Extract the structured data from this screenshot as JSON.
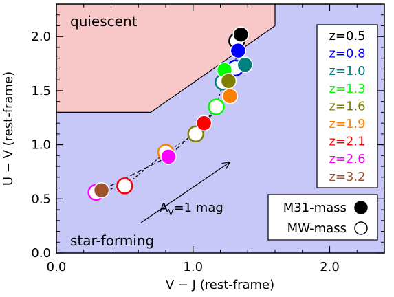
{
  "chart_data": {
    "type": "scatter",
    "xlabel": "V − J (rest-frame)",
    "ylabel": "U − V (rest-frame)",
    "xlim": [
      0.0,
      2.4
    ],
    "ylim": [
      0.0,
      2.3
    ],
    "x_ticks": [
      {
        "value": 0.0,
        "label": "0.0"
      },
      {
        "value": 1.0,
        "label": "1.0"
      },
      {
        "value": 2.0,
        "label": "2.0"
      }
    ],
    "y_ticks": [
      {
        "value": 0.0,
        "label": "0.0"
      },
      {
        "value": 0.5,
        "label": "0.5"
      },
      {
        "value": 1.0,
        "label": "1.0"
      },
      {
        "value": 1.5,
        "label": "1.5"
      },
      {
        "value": 2.0,
        "label": "2.0"
      }
    ],
    "regions": [
      {
        "name": "quiescent",
        "color": "#f8c8c8",
        "boundary": [
          [
            0.0,
            1.3
          ],
          [
            0.69,
            1.3
          ],
          [
            1.6,
            2.1
          ],
          [
            1.6,
            2.3
          ]
        ]
      },
      {
        "name": "star-forming",
        "color": "#c8c8f8"
      }
    ],
    "region_labels": {
      "quiescent": "quiescent",
      "star_forming": "star-forming"
    },
    "redshifts": [
      {
        "label": "z=0.5",
        "color": "#000000"
      },
      {
        "label": "z=0.8",
        "color": "#0000ff"
      },
      {
        "label": "z=1.0",
        "color": "#008080"
      },
      {
        "label": "z=1.3",
        "color": "#00ff00"
      },
      {
        "label": "z=1.6",
        "color": "#808000"
      },
      {
        "label": "z=1.9",
        "color": "#ff8000"
      },
      {
        "label": "z=2.1",
        "color": "#ff0000"
      },
      {
        "label": "z=2.6",
        "color": "#ff00ff"
      },
      {
        "label": "z=3.2",
        "color": "#a0522d"
      }
    ],
    "series": [
      {
        "name": "M31-mass",
        "marker": "filled",
        "points": [
          {
            "x": 1.35,
            "y": 2.02,
            "z": "z=0.5"
          },
          {
            "x": 1.33,
            "y": 1.87,
            "z": "z=0.8"
          },
          {
            "x": 1.38,
            "y": 1.74,
            "z": "z=1.0"
          },
          {
            "x": 1.23,
            "y": 1.69,
            "z": "z=1.3"
          },
          {
            "x": 1.26,
            "y": 1.59,
            "z": "z=1.6"
          },
          {
            "x": 1.27,
            "y": 1.45,
            "z": "z=1.9"
          },
          {
            "x": 1.08,
            "y": 1.2,
            "z": "z=2.1"
          },
          {
            "x": 0.82,
            "y": 0.89,
            "z": "z=2.6"
          },
          {
            "x": 0.33,
            "y": 0.58,
            "z": "z=3.2"
          }
        ]
      },
      {
        "name": "MW-mass",
        "marker": "open",
        "points": [
          {
            "x": 1.32,
            "y": 1.96,
            "z": "z=0.5"
          },
          {
            "x": 1.31,
            "y": 1.71,
            "z": "z=0.8"
          },
          {
            "x": 1.22,
            "y": 1.58,
            "z": "z=1.0"
          },
          {
            "x": 1.17,
            "y": 1.35,
            "z": "z=1.3"
          },
          {
            "x": 1.02,
            "y": 1.1,
            "z": "z=1.6"
          },
          {
            "x": 0.8,
            "y": 0.93,
            "z": "z=1.9"
          },
          {
            "x": 0.5,
            "y": 0.62,
            "z": "z=2.1"
          },
          {
            "x": 0.29,
            "y": 0.56,
            "z": "z=2.6"
          }
        ]
      }
    ],
    "arrow": {
      "from": [
        0.62,
        0.28
      ],
      "to": [
        1.27,
        0.84
      ],
      "label_main": "A",
      "label_sub": "V",
      "label_rest": "=1 mag"
    },
    "legend": {
      "position": "right",
      "mass_position": "bottom-right"
    }
  }
}
